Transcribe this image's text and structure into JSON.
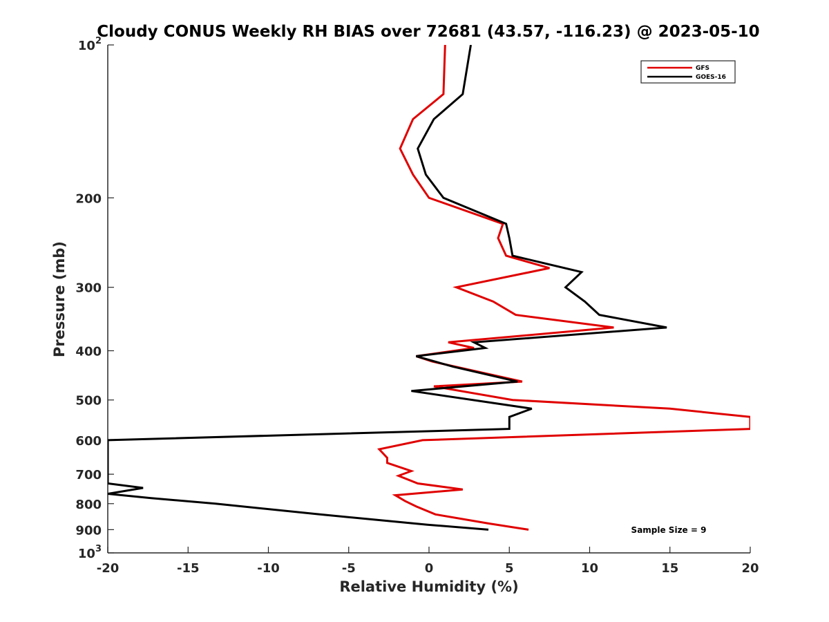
{
  "chart_data": {
    "type": "line",
    "title": "Cloudy CONUS Weekly RH BIAS over 72681 (43.57, -116.23) @ 2023-05-10",
    "xlabel": "Relative Humidity (%)",
    "ylabel": "Pressure (mb)",
    "xlim": [
      -20,
      20
    ],
    "ylim": [
      100,
      1000
    ],
    "y_scale": "log",
    "y_reversed": true,
    "grid": false,
    "legend_position": "top-right",
    "x_ticks": [
      "-20",
      "-15",
      "-10",
      "-5",
      "0",
      "5",
      "10",
      "15",
      "20"
    ],
    "y_ticks": [
      {
        "value": 100,
        "base": "10",
        "exp": "2"
      },
      {
        "value": 200,
        "label": "200"
      },
      {
        "value": 300,
        "label": "300"
      },
      {
        "value": 400,
        "label": "400"
      },
      {
        "value": 500,
        "label": "500"
      },
      {
        "value": 600,
        "label": "600"
      },
      {
        "value": 700,
        "label": "700"
      },
      {
        "value": 800,
        "label": "800"
      },
      {
        "value": 900,
        "label": "900"
      },
      {
        "value": 1000,
        "base": "10",
        "exp": "3"
      }
    ],
    "annotation": "Sample Size = 9",
    "series": [
      {
        "name": "GFS",
        "color": "#e00000",
        "points": [
          [
            1.0,
            100
          ],
          [
            0.9,
            125
          ],
          [
            -1.0,
            140
          ],
          [
            -1.8,
            160
          ],
          [
            -1.0,
            180
          ],
          [
            0.0,
            200
          ],
          [
            4.6,
            225
          ],
          [
            4.3,
            240
          ],
          [
            4.8,
            260
          ],
          [
            7.5,
            275
          ],
          [
            1.7,
            300
          ],
          [
            4.0,
            320
          ],
          [
            5.4,
            340
          ],
          [
            11.5,
            360
          ],
          [
            1.2,
            385
          ],
          [
            2.8,
            395
          ],
          [
            -0.8,
            410
          ],
          [
            0.2,
            420
          ],
          [
            5.8,
            460
          ],
          [
            0.3,
            470
          ],
          [
            5.2,
            500
          ],
          [
            15.0,
            520
          ],
          [
            20.0,
            540
          ],
          [
            20.0,
            570
          ],
          [
            -0.4,
            600
          ],
          [
            -3.1,
            625
          ],
          [
            -2.6,
            650
          ],
          [
            -2.6,
            665
          ],
          [
            -1.1,
            690
          ],
          [
            -1.9,
            705
          ],
          [
            -0.7,
            730
          ],
          [
            2.1,
            750
          ],
          [
            -2.1,
            770
          ],
          [
            -1.5,
            790
          ],
          [
            -0.8,
            810
          ],
          [
            0.4,
            840
          ],
          [
            3.7,
            875
          ],
          [
            6.2,
            900
          ]
        ]
      },
      {
        "name": "GOES-16",
        "color": "#000000",
        "points": [
          [
            2.6,
            100
          ],
          [
            2.1,
            125
          ],
          [
            0.3,
            140
          ],
          [
            -0.7,
            160
          ],
          [
            -0.2,
            180
          ],
          [
            0.9,
            200
          ],
          [
            4.8,
            225
          ],
          [
            5.0,
            240
          ],
          [
            5.2,
            260
          ],
          [
            9.5,
            280
          ],
          [
            8.5,
            300
          ],
          [
            9.7,
            320
          ],
          [
            10.6,
            340
          ],
          [
            14.8,
            360
          ],
          [
            2.8,
            385
          ],
          [
            3.5,
            395
          ],
          [
            -0.8,
            410
          ],
          [
            1.5,
            430
          ],
          [
            5.5,
            460
          ],
          [
            -1.1,
            480
          ],
          [
            6.4,
            520
          ],
          [
            5.0,
            540
          ],
          [
            5.0,
            570
          ],
          [
            -20.0,
            600
          ],
          [
            -20.0,
            730
          ],
          [
            -17.8,
            745
          ],
          [
            -20.0,
            765
          ],
          [
            -17.3,
            780
          ],
          [
            -13.3,
            800
          ],
          [
            -6.8,
            840
          ],
          [
            -3.4,
            860
          ],
          [
            -0.1,
            880
          ],
          [
            3.7,
            900
          ]
        ]
      }
    ]
  }
}
